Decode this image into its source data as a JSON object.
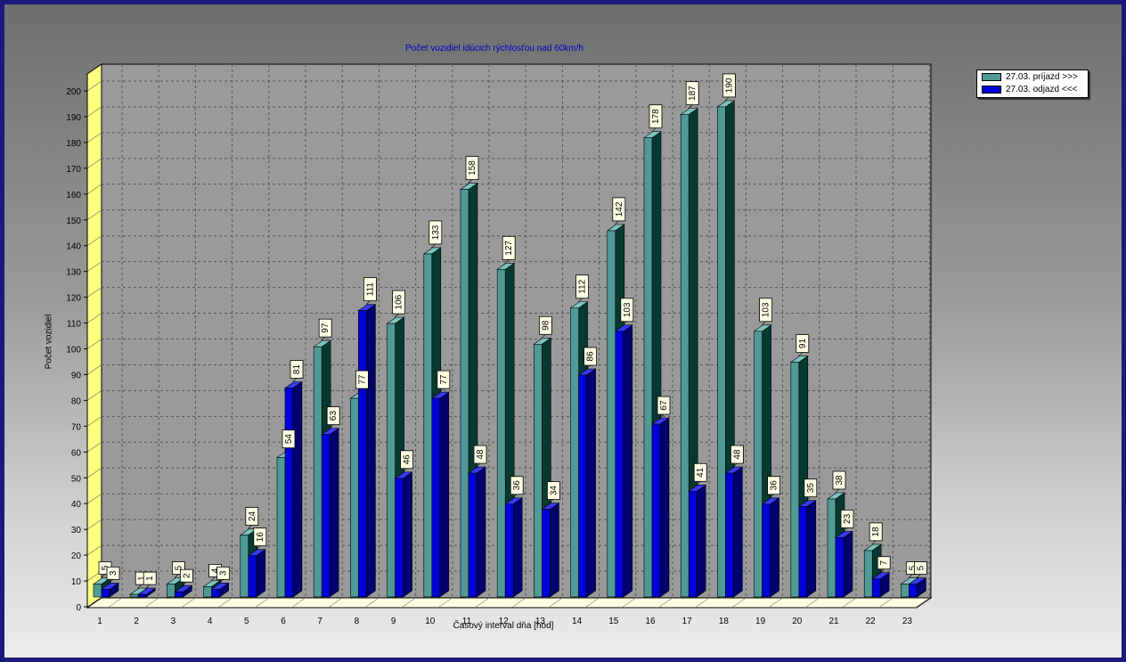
{
  "chart_data": {
    "type": "bar",
    "title": "Počet vozidiel idúcich rýchlosťou nad 60km/h",
    "xlabel": "Časový interval dňa [hod]",
    "ylabel": "Počet vozidiel",
    "ylim": [
      0,
      200
    ],
    "yticks": [
      "0",
      "10",
      "20",
      "30",
      "40",
      "50",
      "60",
      "70",
      "80",
      "90",
      "100",
      "110",
      "120",
      "130",
      "140",
      "150",
      "160",
      "170",
      "180",
      "190",
      "200"
    ],
    "categories": [
      "1",
      "2",
      "3",
      "4",
      "5",
      "6",
      "7",
      "8",
      "9",
      "10",
      "11",
      "12",
      "13",
      "14",
      "15",
      "16",
      "17",
      "18",
      "19",
      "20",
      "21",
      "22",
      "23"
    ],
    "grid": true,
    "legend_position": "top-right",
    "series": [
      {
        "name": "27.03.  príjazd >>>",
        "color": "#4f9a96",
        "values": [
          5,
          1,
          5,
          4,
          24,
          54,
          97,
          77,
          106,
          133,
          158,
          127,
          98,
          112,
          142,
          178,
          187,
          190,
          103,
          91,
          38,
          18,
          5
        ]
      },
      {
        "name": "27.03.  odjazd <<<",
        "color": "#0000d8",
        "values": [
          3,
          1,
          2,
          3,
          16,
          81,
          63,
          111,
          46,
          77,
          48,
          36,
          34,
          86,
          103,
          67,
          41,
          48,
          36,
          35,
          23,
          7,
          5
        ]
      }
    ]
  }
}
